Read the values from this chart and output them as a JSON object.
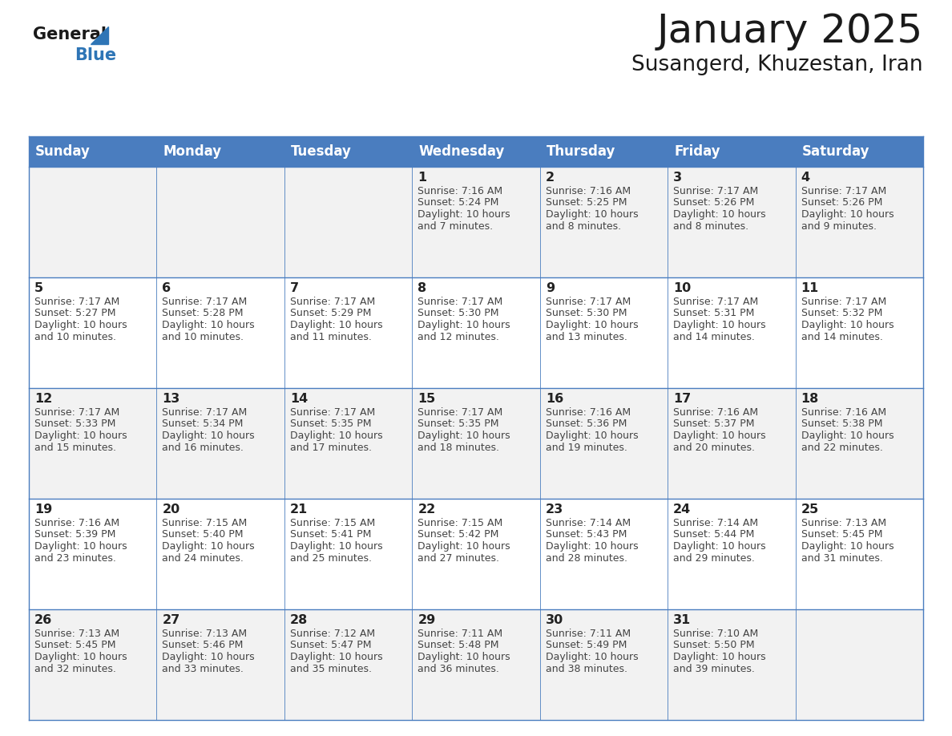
{
  "title": "January 2025",
  "subtitle": "Susangerd, Khuzestan, Iran",
  "days_of_week": [
    "Sunday",
    "Monday",
    "Tuesday",
    "Wednesday",
    "Thursday",
    "Friday",
    "Saturday"
  ],
  "header_bg": "#4A7DBF",
  "header_text": "#FFFFFF",
  "cell_bg_odd": "#F2F2F2",
  "cell_bg_even": "#FFFFFF",
  "cell_border": "#4A7DBF",
  "day_number_color": "#222222",
  "cell_text_color": "#444444",
  "title_color": "#1a1a1a",
  "logo_general_color": "#1a1a1a",
  "logo_blue_color": "#2E75B6",
  "weeks": [
    {
      "days": [
        {
          "date": "",
          "sunrise": "",
          "sunset": "",
          "daylight": ""
        },
        {
          "date": "",
          "sunrise": "",
          "sunset": "",
          "daylight": ""
        },
        {
          "date": "",
          "sunrise": "",
          "sunset": "",
          "daylight": ""
        },
        {
          "date": "1",
          "sunrise": "7:16 AM",
          "sunset": "5:24 PM",
          "daylight": "10 hours and 7 minutes."
        },
        {
          "date": "2",
          "sunrise": "7:16 AM",
          "sunset": "5:25 PM",
          "daylight": "10 hours and 8 minutes."
        },
        {
          "date": "3",
          "sunrise": "7:17 AM",
          "sunset": "5:26 PM",
          "daylight": "10 hours and 8 minutes."
        },
        {
          "date": "4",
          "sunrise": "7:17 AM",
          "sunset": "5:26 PM",
          "daylight": "10 hours and 9 minutes."
        }
      ]
    },
    {
      "days": [
        {
          "date": "5",
          "sunrise": "7:17 AM",
          "sunset": "5:27 PM",
          "daylight": "10 hours and 10 minutes."
        },
        {
          "date": "6",
          "sunrise": "7:17 AM",
          "sunset": "5:28 PM",
          "daylight": "10 hours and 10 minutes."
        },
        {
          "date": "7",
          "sunrise": "7:17 AM",
          "sunset": "5:29 PM",
          "daylight": "10 hours and 11 minutes."
        },
        {
          "date": "8",
          "sunrise": "7:17 AM",
          "sunset": "5:30 PM",
          "daylight": "10 hours and 12 minutes."
        },
        {
          "date": "9",
          "sunrise": "7:17 AM",
          "sunset": "5:30 PM",
          "daylight": "10 hours and 13 minutes."
        },
        {
          "date": "10",
          "sunrise": "7:17 AM",
          "sunset": "5:31 PM",
          "daylight": "10 hours and 14 minutes."
        },
        {
          "date": "11",
          "sunrise": "7:17 AM",
          "sunset": "5:32 PM",
          "daylight": "10 hours and 14 minutes."
        }
      ]
    },
    {
      "days": [
        {
          "date": "12",
          "sunrise": "7:17 AM",
          "sunset": "5:33 PM",
          "daylight": "10 hours and 15 minutes."
        },
        {
          "date": "13",
          "sunrise": "7:17 AM",
          "sunset": "5:34 PM",
          "daylight": "10 hours and 16 minutes."
        },
        {
          "date": "14",
          "sunrise": "7:17 AM",
          "sunset": "5:35 PM",
          "daylight": "10 hours and 17 minutes."
        },
        {
          "date": "15",
          "sunrise": "7:17 AM",
          "sunset": "5:35 PM",
          "daylight": "10 hours and 18 minutes."
        },
        {
          "date": "16",
          "sunrise": "7:16 AM",
          "sunset": "5:36 PM",
          "daylight": "10 hours and 19 minutes."
        },
        {
          "date": "17",
          "sunrise": "7:16 AM",
          "sunset": "5:37 PM",
          "daylight": "10 hours and 20 minutes."
        },
        {
          "date": "18",
          "sunrise": "7:16 AM",
          "sunset": "5:38 PM",
          "daylight": "10 hours and 22 minutes."
        }
      ]
    },
    {
      "days": [
        {
          "date": "19",
          "sunrise": "7:16 AM",
          "sunset": "5:39 PM",
          "daylight": "10 hours and 23 minutes."
        },
        {
          "date": "20",
          "sunrise": "7:15 AM",
          "sunset": "5:40 PM",
          "daylight": "10 hours and 24 minutes."
        },
        {
          "date": "21",
          "sunrise": "7:15 AM",
          "sunset": "5:41 PM",
          "daylight": "10 hours and 25 minutes."
        },
        {
          "date": "22",
          "sunrise": "7:15 AM",
          "sunset": "5:42 PM",
          "daylight": "10 hours and 27 minutes."
        },
        {
          "date": "23",
          "sunrise": "7:14 AM",
          "sunset": "5:43 PM",
          "daylight": "10 hours and 28 minutes."
        },
        {
          "date": "24",
          "sunrise": "7:14 AM",
          "sunset": "5:44 PM",
          "daylight": "10 hours and 29 minutes."
        },
        {
          "date": "25",
          "sunrise": "7:13 AM",
          "sunset": "5:45 PM",
          "daylight": "10 hours and 31 minutes."
        }
      ]
    },
    {
      "days": [
        {
          "date": "26",
          "sunrise": "7:13 AM",
          "sunset": "5:45 PM",
          "daylight": "10 hours and 32 minutes."
        },
        {
          "date": "27",
          "sunrise": "7:13 AM",
          "sunset": "5:46 PM",
          "daylight": "10 hours and 33 minutes."
        },
        {
          "date": "28",
          "sunrise": "7:12 AM",
          "sunset": "5:47 PM",
          "daylight": "10 hours and 35 minutes."
        },
        {
          "date": "29",
          "sunrise": "7:11 AM",
          "sunset": "5:48 PM",
          "daylight": "10 hours and 36 minutes."
        },
        {
          "date": "30",
          "sunrise": "7:11 AM",
          "sunset": "5:49 PM",
          "daylight": "10 hours and 38 minutes."
        },
        {
          "date": "31",
          "sunrise": "7:10 AM",
          "sunset": "5:50 PM",
          "daylight": "10 hours and 39 minutes."
        },
        {
          "date": "",
          "sunrise": "",
          "sunset": "",
          "daylight": ""
        }
      ]
    }
  ]
}
